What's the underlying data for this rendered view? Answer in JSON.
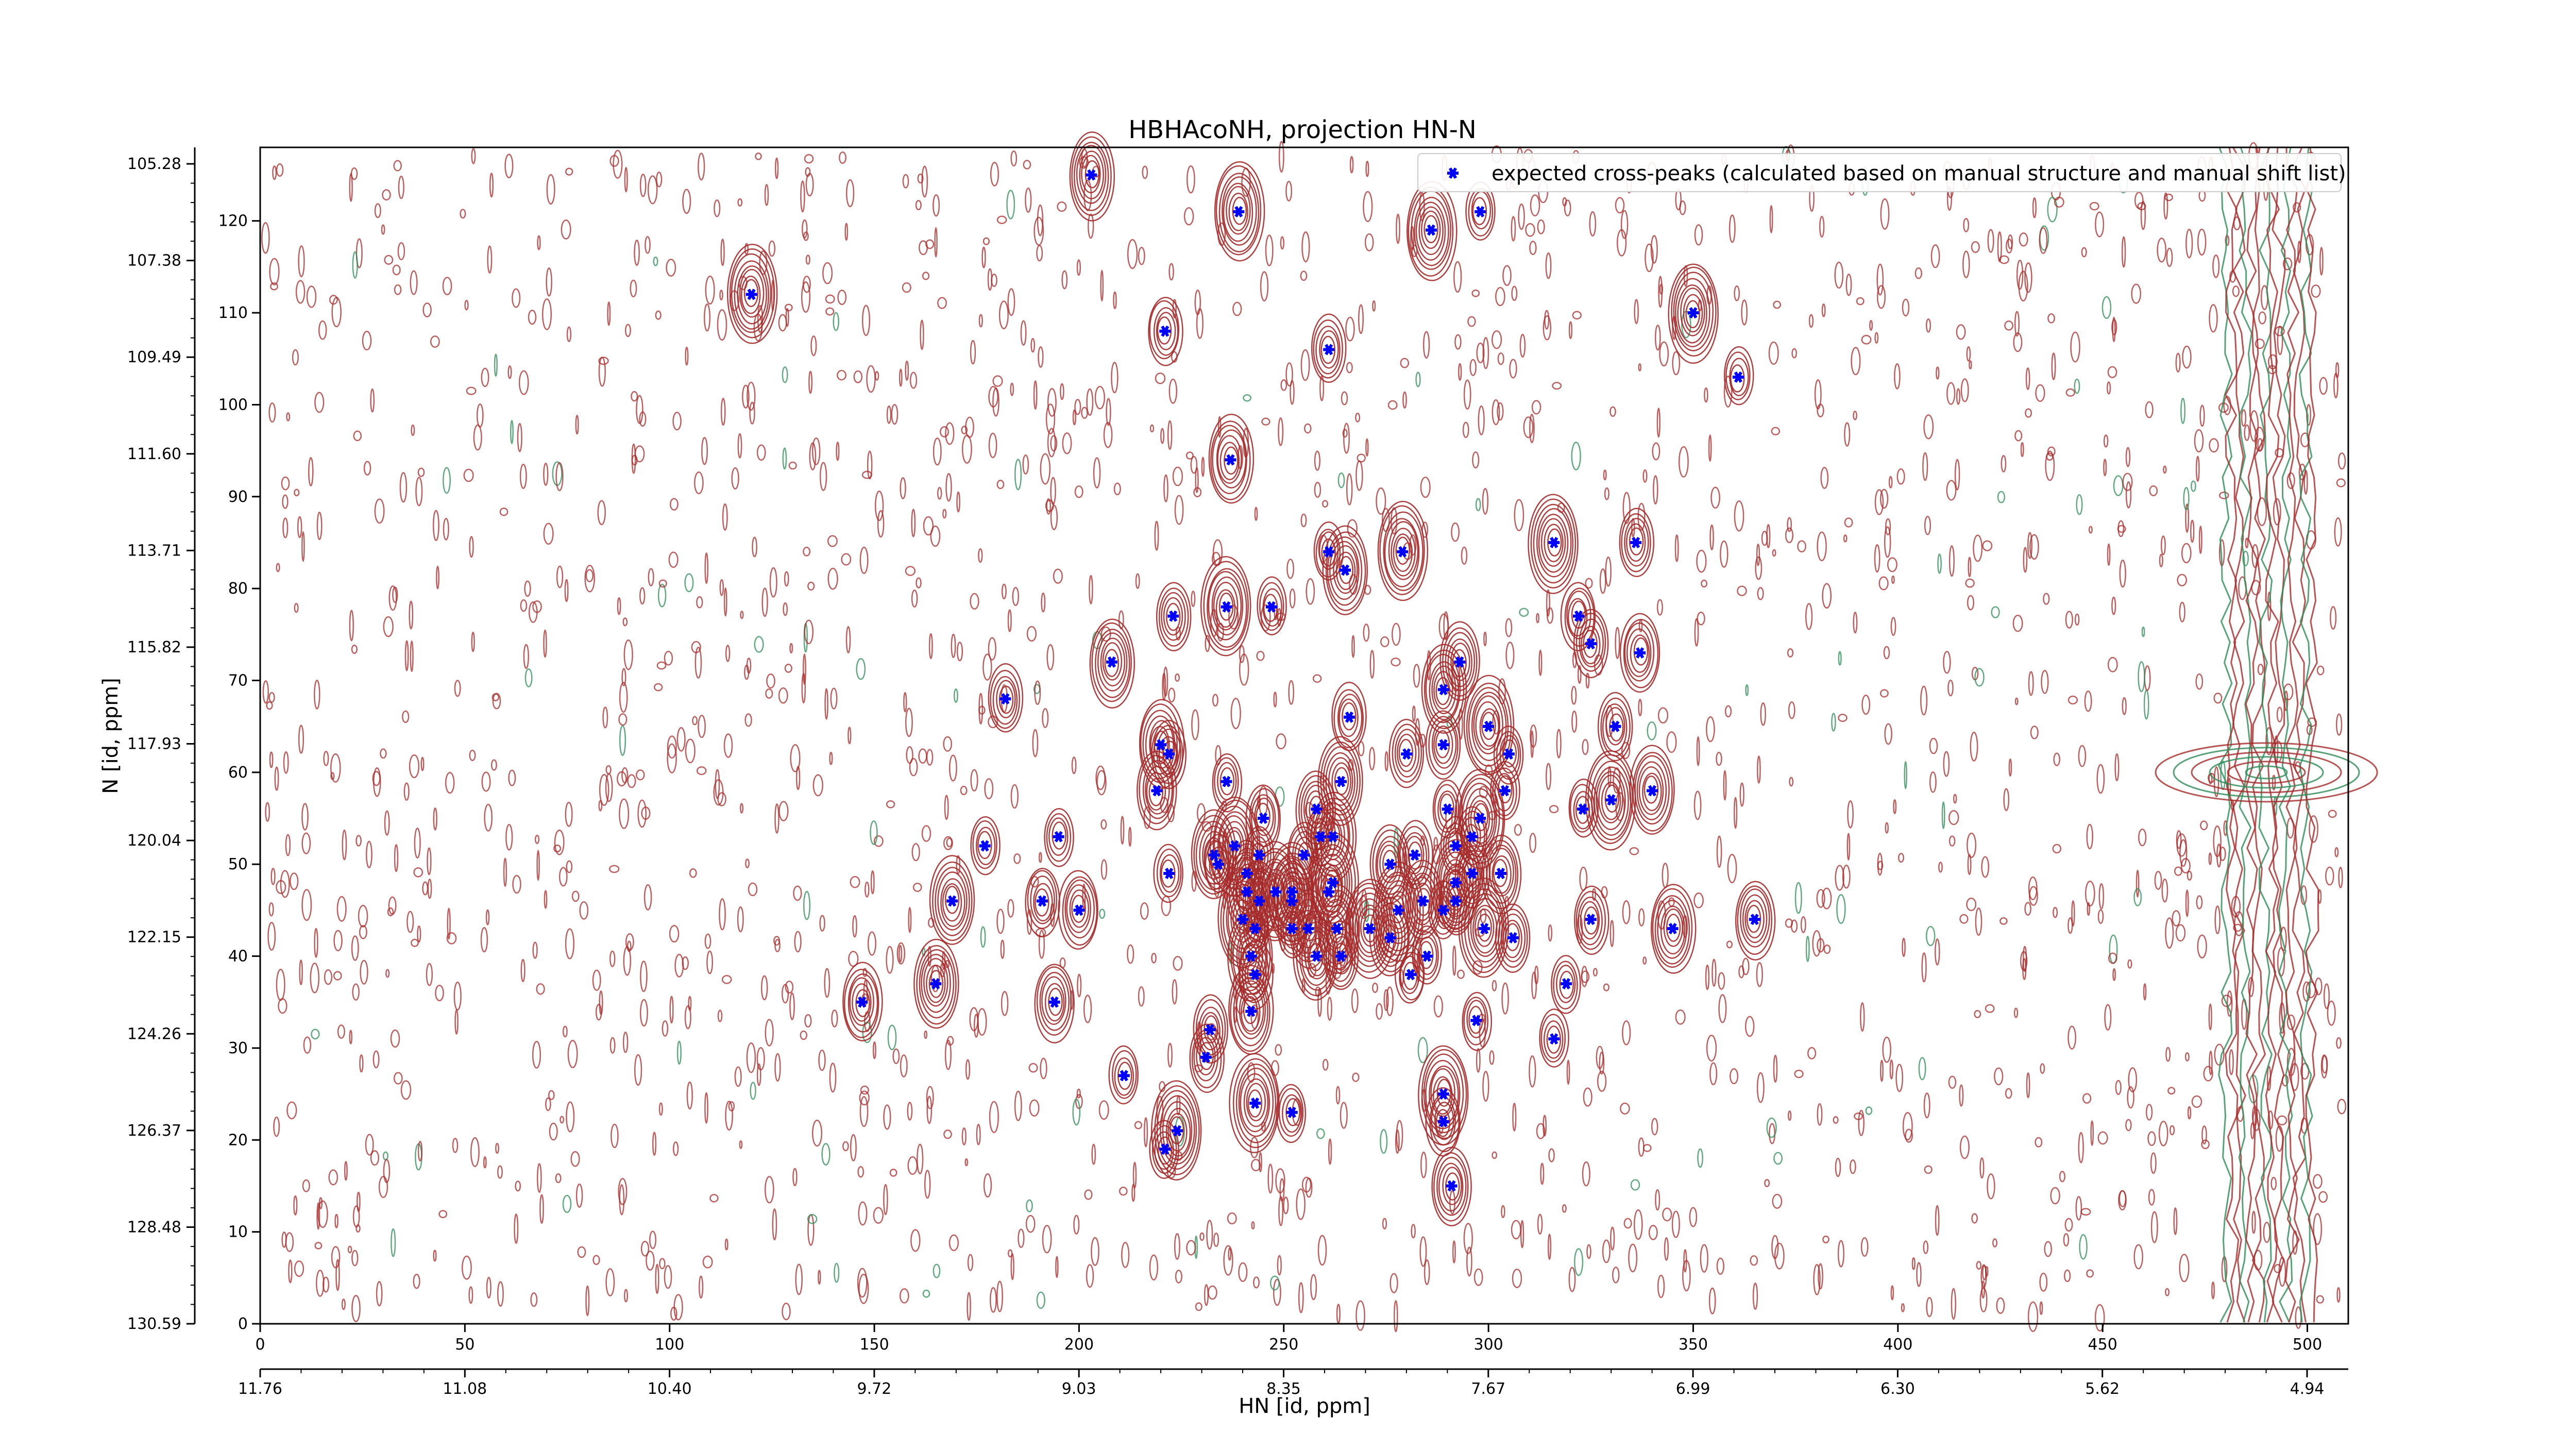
{
  "chart_data": {
    "type": "scatter",
    "title": "HBHAcoNH, projection HN-N",
    "xlabel": "HN [id, ppm]",
    "ylabel": "N [id, ppm]",
    "xlim": [
      0,
      510
    ],
    "ylim": [
      0,
      128
    ],
    "x_ticks_index": [
      "0",
      "50",
      "100",
      "150",
      "200",
      "250",
      "300",
      "350",
      "400",
      "450",
      "500"
    ],
    "y_ticks_index": [
      "0",
      "10",
      "20",
      "30",
      "40",
      "50",
      "60",
      "70",
      "80",
      "90",
      "100",
      "110",
      "120"
    ],
    "x_ticks_ppm": [
      "11.76",
      "11.08",
      "10.40",
      "9.72",
      "9.03",
      "8.35",
      "7.67",
      "6.99",
      "6.30",
      "5.62",
      "4.94"
    ],
    "y_ticks_ppm": [
      "105.28",
      "107.38",
      "109.49",
      "111.60",
      "113.71",
      "115.82",
      "117.93",
      "120.04",
      "122.15",
      "124.26",
      "126.37",
      "128.48",
      "130.59"
    ],
    "legend": {
      "position": "top-right",
      "entries": [
        "expected cross-peaks (calculated based on manual structure and manual shift list)"
      ]
    },
    "colors": {
      "peak_marker": "#0000ff",
      "positive_contour": "#a52a2a",
      "negative_contour": "#2e8b57"
    },
    "series": [
      {
        "name": "expected cross-peaks (calculated based on manual structure and manual shift list)",
        "points": [
          [
            203,
            125
          ],
          [
            239,
            121
          ],
          [
            286,
            119
          ],
          [
            298,
            121
          ],
          [
            120,
            112
          ],
          [
            221,
            108
          ],
          [
            261,
            106
          ],
          [
            350,
            110
          ],
          [
            361,
            103
          ],
          [
            237,
            94
          ],
          [
            261,
            84
          ],
          [
            265,
            82
          ],
          [
            279,
            84
          ],
          [
            316,
            85
          ],
          [
            336,
            85
          ],
          [
            223,
            77
          ],
          [
            236,
            78
          ],
          [
            247,
            78
          ],
          [
            208,
            72
          ],
          [
            322,
            77
          ],
          [
            325,
            74
          ],
          [
            337,
            73
          ],
          [
            293,
            72
          ],
          [
            289,
            69
          ],
          [
            182,
            68
          ],
          [
            266,
            66
          ],
          [
            300,
            65
          ],
          [
            331,
            65
          ],
          [
            220,
            63
          ],
          [
            222,
            62
          ],
          [
            280,
            62
          ],
          [
            289,
            63
          ],
          [
            305,
            62
          ],
          [
            219,
            58
          ],
          [
            236,
            59
          ],
          [
            264,
            59
          ],
          [
            304,
            58
          ],
          [
            330,
            57
          ],
          [
            340,
            58
          ],
          [
            195,
            53
          ],
          [
            177,
            52
          ],
          [
            290,
            56
          ],
          [
            298,
            55
          ],
          [
            245,
            55
          ],
          [
            258,
            56
          ],
          [
            323,
            56
          ],
          [
            259,
            53
          ],
          [
            238,
            52
          ],
          [
            262,
            53
          ],
          [
            233,
            51
          ],
          [
            244,
            51
          ],
          [
            255,
            51
          ],
          [
            282,
            51
          ],
          [
            292,
            52
          ],
          [
            296,
            53
          ],
          [
            234,
            50
          ],
          [
            241,
            49
          ],
          [
            262,
            48
          ],
          [
            222,
            49
          ],
          [
            296,
            49
          ],
          [
            303,
            49
          ],
          [
            276,
            50
          ],
          [
            292,
            48
          ],
          [
            244,
            46
          ],
          [
            241,
            47
          ],
          [
            248,
            47
          ],
          [
            252,
            47
          ],
          [
            252,
            46
          ],
          [
            261,
            47
          ],
          [
            169,
            46
          ],
          [
            191,
            46
          ],
          [
            200,
            45
          ],
          [
            292,
            46
          ],
          [
            289,
            45
          ],
          [
            284,
            46
          ],
          [
            278,
            45
          ],
          [
            325,
            44
          ],
          [
            345,
            43
          ],
          [
            365,
            44
          ],
          [
            240,
            44
          ],
          [
            243,
            43
          ],
          [
            252,
            43
          ],
          [
            256,
            43
          ],
          [
            263,
            43
          ],
          [
            271,
            43
          ],
          [
            276,
            42
          ],
          [
            299,
            43
          ],
          [
            306,
            42
          ],
          [
            242,
            40
          ],
          [
            258,
            40
          ],
          [
            264,
            40
          ],
          [
            285,
            40
          ],
          [
            281,
            38
          ],
          [
            243,
            38
          ],
          [
            165,
            37
          ],
          [
            147,
            35
          ],
          [
            194,
            35
          ],
          [
            319,
            37
          ],
          [
            242,
            34
          ],
          [
            232,
            32
          ],
          [
            231,
            29
          ],
          [
            297,
            33
          ],
          [
            316,
            31
          ],
          [
            211,
            27
          ],
          [
            243,
            24
          ],
          [
            289,
            25
          ],
          [
            224,
            21
          ],
          [
            221,
            19
          ],
          [
            252,
            23
          ],
          [
            289,
            22
          ],
          [
            291,
            15
          ]
        ]
      }
    ]
  }
}
